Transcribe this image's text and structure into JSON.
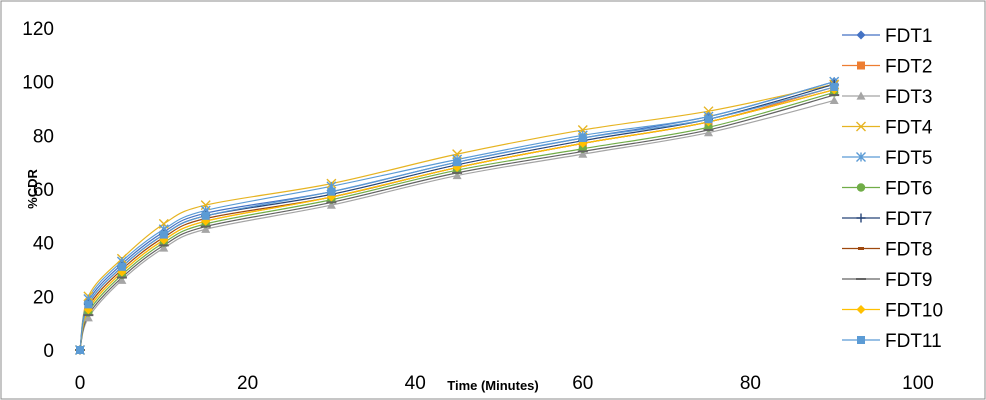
{
  "chart_data": {
    "type": "line",
    "xlabel": "Time (Minutes)",
    "ylabel": "%CDR",
    "xlim": [
      0,
      100
    ],
    "ylim": [
      0,
      120
    ],
    "xticks": [
      0,
      20,
      40,
      60,
      80,
      100
    ],
    "yticks": [
      0,
      20,
      40,
      60,
      80,
      100,
      120
    ],
    "grid": false,
    "legend_position": "right",
    "x": [
      0,
      1,
      5,
      10,
      15,
      30,
      45,
      60,
      75,
      90
    ],
    "series": [
      {
        "name": "FDT1",
        "color": "#4472C4",
        "marker": "diamond",
        "values": [
          0,
          18,
          32,
          44,
          51,
          59,
          70,
          79,
          87,
          100
        ]
      },
      {
        "name": "FDT2",
        "color": "#ED7D31",
        "marker": "square",
        "values": [
          0,
          15,
          29,
          41,
          48,
          57,
          68,
          77,
          85,
          98
        ]
      },
      {
        "name": "FDT3",
        "color": "#A5A5A5",
        "marker": "triangle",
        "values": [
          0,
          12,
          26,
          38,
          45,
          54,
          65,
          73,
          81,
          93
        ]
      },
      {
        "name": "FDT4",
        "color": "#E6B422",
        "marker": "x",
        "values": [
          0,
          20,
          34,
          47,
          54,
          62,
          73,
          82,
          89,
          99
        ]
      },
      {
        "name": "FDT5",
        "color": "#5B9BD5",
        "marker": "star",
        "values": [
          0,
          19,
          33,
          45,
          52,
          61,
          71,
          80,
          87,
          100
        ]
      },
      {
        "name": "FDT6",
        "color": "#70AD47",
        "marker": "circle",
        "values": [
          0,
          14,
          28,
          40,
          47,
          56,
          67,
          75,
          83,
          96
        ]
      },
      {
        "name": "FDT7",
        "color": "#264478",
        "marker": "plus",
        "values": [
          0,
          17,
          31,
          43,
          50,
          58,
          69,
          78,
          86,
          99
        ]
      },
      {
        "name": "FDT8",
        "color": "#9E480E",
        "marker": "dash",
        "values": [
          0,
          16,
          30,
          42,
          49,
          57,
          68,
          77,
          85,
          97
        ]
      },
      {
        "name": "FDT9",
        "color": "#636363",
        "marker": "line",
        "values": [
          0,
          13,
          27,
          39,
          46,
          55,
          66,
          74,
          82,
          95
        ]
      },
      {
        "name": "FDT10",
        "color": "#FFC000",
        "marker": "diamond",
        "values": [
          0,
          15,
          29,
          41,
          48,
          57,
          68,
          77,
          85,
          97
        ]
      },
      {
        "name": "FDT11",
        "color": "#5B9BD5",
        "marker": "square",
        "values": [
          0,
          17,
          31,
          43,
          50,
          59,
          70,
          79,
          86,
          98
        ]
      }
    ]
  }
}
